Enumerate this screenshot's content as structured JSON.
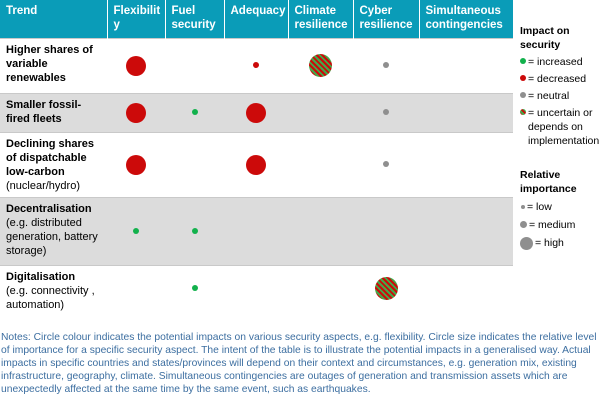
{
  "headers": [
    "Trend",
    "Flexibilit y",
    "Fuel security",
    "Adequacy",
    "Climate resilience",
    "Cyber resilience",
    "Simultaneous contingencies"
  ],
  "rows": [
    {
      "name": "Higher shares of variable renewables",
      "sub": "",
      "cells": [
        {
          "impact": "decreased",
          "size": "high"
        },
        {
          "impact": "increased",
          "size": "medium"
        },
        {
          "impact": "decreased",
          "size": "low"
        },
        {
          "impact": "uncertain",
          "size": "xhigh"
        },
        {
          "impact": "neutral",
          "size": "low"
        },
        {
          "impact": "uncertain",
          "size": "medium"
        }
      ]
    },
    {
      "name": "Smaller fossil-fired fleets",
      "sub": "",
      "cells": [
        {
          "impact": "decreased",
          "size": "high"
        },
        {
          "impact": "increased",
          "size": "low"
        },
        {
          "impact": "decreased",
          "size": "high"
        },
        {
          "impact": "uncertain",
          "size": "medium"
        },
        {
          "impact": "neutral",
          "size": "low"
        },
        {
          "impact": "uncertain",
          "size": "medium"
        }
      ]
    },
    {
      "name": "Declining shares of dispatchable low-carbon",
      "sub": "(nuclear/hydro)",
      "cells": [
        {
          "impact": "decreased",
          "size": "high"
        },
        {
          "impact": "decreased",
          "size": "medium"
        },
        {
          "impact": "decreased",
          "size": "high"
        },
        {
          "impact": "uncertain",
          "size": "medium"
        },
        {
          "impact": "neutral",
          "size": "low"
        },
        {
          "impact": "uncertain",
          "size": "medium"
        }
      ]
    },
    {
      "name": "Decentralisation",
      "sub": "(e.g. distributed generation, battery storage)",
      "cells": [
        {
          "impact": "increased",
          "size": "low"
        },
        {
          "impact": "increased",
          "size": "low"
        },
        {
          "impact": "uncertain",
          "size": "medium"
        },
        {
          "impact": "increased",
          "size": "medium"
        },
        {
          "impact": "uncertain",
          "size": "medium"
        },
        {
          "impact": "increased",
          "size": "medium"
        }
      ]
    },
    {
      "name": "Digitalisation",
      "sub": "(e.g. connectivity , automation)",
      "cells": [
        {
          "impact": "increased",
          "size": "medium"
        },
        {
          "impact": "increased",
          "size": "low"
        },
        {
          "impact": "increased",
          "size": "medium"
        },
        {
          "impact": "increased",
          "size": "medium"
        },
        {
          "impact": "uncertain",
          "size": "xhigh"
        },
        {
          "impact": "increased",
          "size": "medium"
        }
      ]
    }
  ],
  "legend": {
    "impact_title": "Impact on security",
    "increased": "= increased",
    "decreased": "= decreased",
    "neutral": "= neutral",
    "uncertain": "= uncertain or depends on implementation",
    "importance_title": "Relative importance",
    "low": "= low",
    "medium": "= medium",
    "high": "= high"
  },
  "colors": {
    "header": "#0a9cb8",
    "increased": "#12b14c",
    "decreased": "#cc0a0a",
    "neutral": "#8f8f8f",
    "row_gray": "#dcdcdc",
    "notes_text": "#3c6ea0"
  },
  "notes": "Notes: Circle colour indicates the potential impacts on various security aspects, e.g. flexibility. Circle size indicates the relative level of importance for a specific security aspect. The intent of the table is to illustrate the potential impacts in a generalised way. Actual impacts in specific countries and states/provinces will depend on their context and circumstances, e.g. generation mix, existing infrastructure, geography, climate. Simultaneous contingencies are outages of generation and transmission assets which are unexpectedly affected at the same time by the same event, such as earthquakes."
}
